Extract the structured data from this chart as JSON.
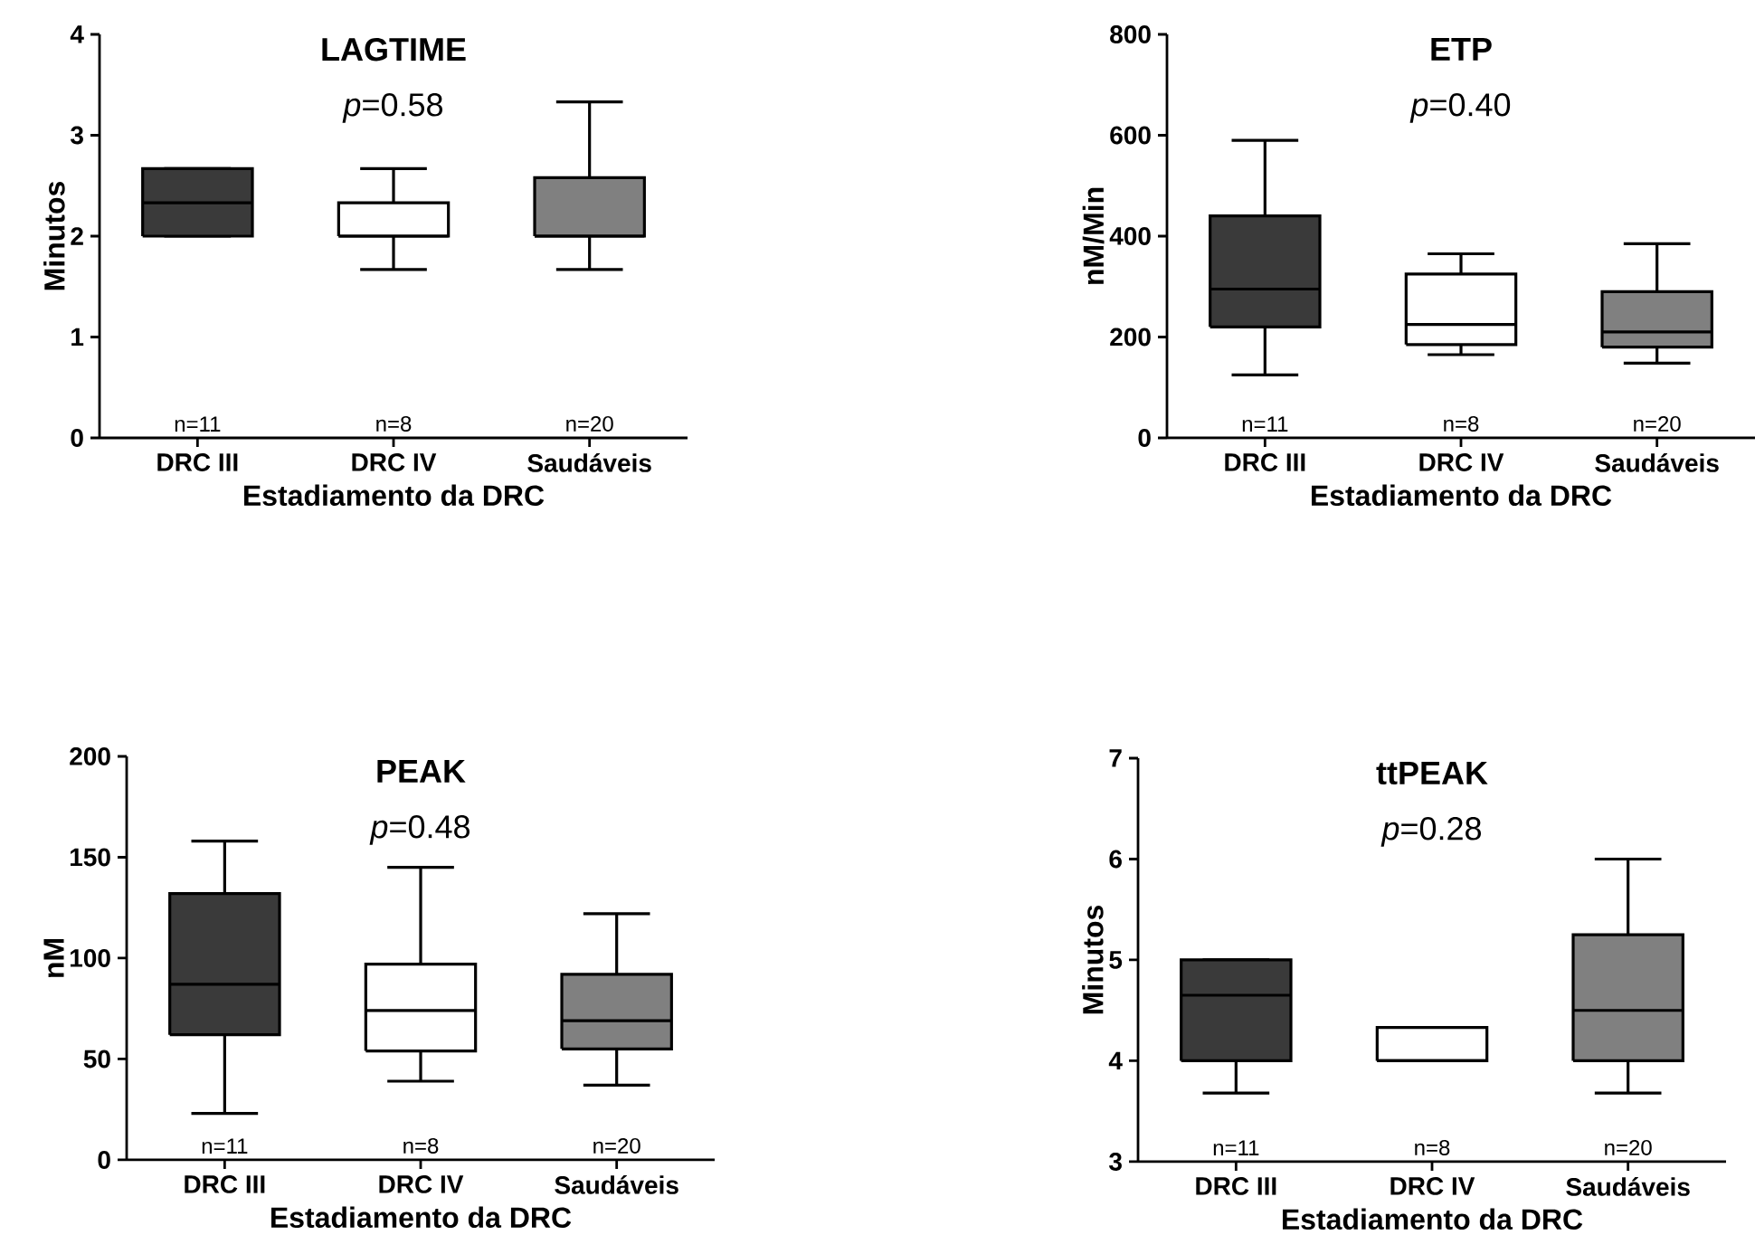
{
  "chart_data": [
    {
      "type": "box",
      "title": "LAGTIME",
      "subtitle": "*p*=0.58",
      "xlabel": "Estadiamento da DRC",
      "ylabel": "Minutos",
      "categories": [
        "DRC III",
        "DRC IV",
        "Saudáveis"
      ],
      "colors": [
        "#3a3a3a",
        "#ffffff",
        "#808080"
      ],
      "ylim": [
        0,
        4
      ],
      "yticks": [
        0,
        1,
        2,
        3,
        4
      ],
      "boxes": [
        {
          "low": 2.0,
          "q1": 2.0,
          "median": 2.33,
          "q3": 2.67,
          "high": 2.67
        },
        {
          "low": 1.67,
          "q1": 2.0,
          "median": 2.0,
          "q3": 2.33,
          "high": 2.67
        },
        {
          "low": 1.67,
          "q1": 2.0,
          "median": 2.0,
          "q3": 2.58,
          "high": 3.33
        }
      ],
      "annotations": [
        "n=11",
        "n=8",
        "n=20"
      ]
    },
    {
      "type": "box",
      "title": "ETP",
      "subtitle": "*p*=0.40",
      "xlabel": "Estadiamento da DRC",
      "ylabel": "nM/Min",
      "categories": [
        "DRC III",
        "DRC IV",
        "Saudáveis"
      ],
      "colors": [
        "#3a3a3a",
        "#ffffff",
        "#808080"
      ],
      "ylim": [
        0,
        800
      ],
      "yticks": [
        0,
        200,
        400,
        600,
        800
      ],
      "boxes": [
        {
          "low": 125,
          "q1": 220,
          "median": 295,
          "q3": 440,
          "high": 590
        },
        {
          "low": 165,
          "q1": 185,
          "median": 225,
          "q3": 325,
          "high": 365
        },
        {
          "low": 148,
          "q1": 180,
          "median": 210,
          "q3": 290,
          "high": 385
        }
      ],
      "annotations": [
        "n=11",
        "n=8",
        "n=20"
      ]
    },
    {
      "type": "box",
      "title": "PEAK",
      "subtitle": "*p*=0.48",
      "xlabel": "Estadiamento da DRC",
      "ylabel": "nM",
      "categories": [
        "DRC III",
        "DRC IV",
        "Saudáveis"
      ],
      "colors": [
        "#3a3a3a",
        "#ffffff",
        "#808080"
      ],
      "ylim": [
        0,
        200
      ],
      "yticks": [
        0,
        50,
        100,
        150,
        200
      ],
      "boxes": [
        {
          "low": 23,
          "q1": 62,
          "median": 87,
          "q3": 132,
          "high": 158
        },
        {
          "low": 39,
          "q1": 54,
          "median": 74,
          "q3": 97,
          "high": 145
        },
        {
          "low": 37,
          "q1": 55,
          "median": 69,
          "q3": 92,
          "high": 122
        }
      ],
      "annotations": [
        "n=11",
        "n=8",
        "n=20"
      ]
    },
    {
      "type": "box",
      "title": "ttPEAK",
      "subtitle": "*p*=0.28",
      "xlabel": "Estadiamento da DRC",
      "ylabel": "Minutos",
      "categories": [
        "DRC III",
        "DRC IV",
        "Saudáveis"
      ],
      "colors": [
        "#3a3a3a",
        "#ffffff",
        "#808080"
      ],
      "ylim": [
        3,
        7
      ],
      "yticks": [
        3,
        4,
        5,
        6,
        7
      ],
      "boxes": [
        {
          "low": 3.68,
          "q1": 4.0,
          "median": 4.65,
          "q3": 5.0,
          "high": 5.0
        },
        {
          "low": 4.0,
          "q1": 4.0,
          "median": 4.0,
          "q3": 4.33,
          "high": 4.33
        },
        {
          "low": 3.68,
          "q1": 4.0,
          "median": 4.5,
          "q3": 5.25,
          "high": 6.0
        }
      ],
      "annotations": [
        "n=11",
        "n=8",
        "n=20"
      ]
    }
  ]
}
